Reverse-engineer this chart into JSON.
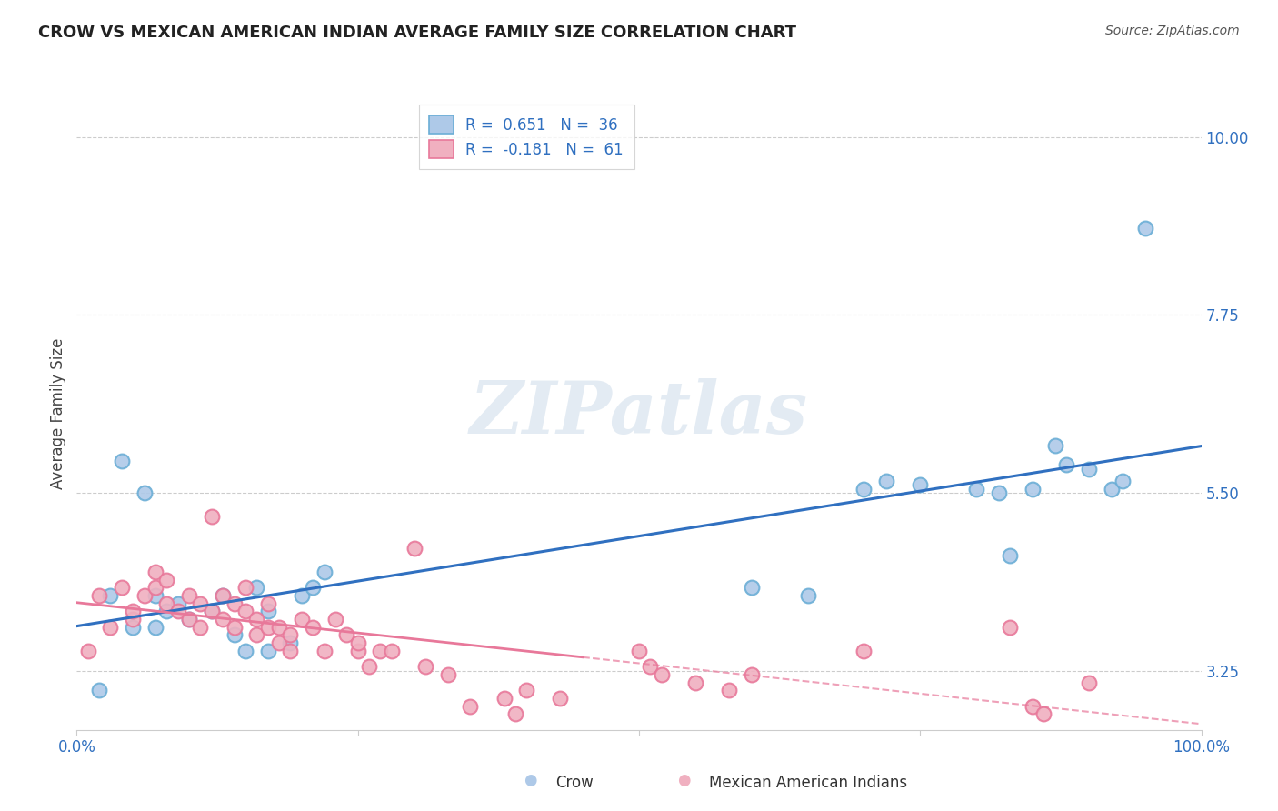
{
  "title": "CROW VS MEXICAN AMERICAN INDIAN AVERAGE FAMILY SIZE CORRELATION CHART",
  "source": "Source: ZipAtlas.com",
  "ylabel": "Average Family Size",
  "xlim": [
    0.0,
    1.0
  ],
  "ylim": [
    2.5,
    10.5
  ],
  "yticks": [
    3.25,
    5.5,
    7.75,
    10.0
  ],
  "ytick_labels": [
    "3.25",
    "5.50",
    "7.75",
    "10.00"
  ],
  "xtick_labels_left": "0.0%",
  "xtick_labels_right": "100.0%",
  "background_color": "#ffffff",
  "grid_color": "#cccccc",
  "crow_color": "#6baed6",
  "crow_face": "#aec9e8",
  "mexican_color": "#e8789a",
  "mexican_face": "#f0b0c0",
  "crow_R": 0.651,
  "crow_N": 36,
  "mexican_R": -0.181,
  "mexican_N": 61,
  "crow_line_color": "#3070c0",
  "mexican_line_color": "#e8789a",
  "watermark": "ZIPatlas",
  "crow_points_x": [
    0.02,
    0.03,
    0.04,
    0.05,
    0.06,
    0.07,
    0.07,
    0.08,
    0.09,
    0.1,
    0.12,
    0.13,
    0.14,
    0.15,
    0.16,
    0.17,
    0.17,
    0.19,
    0.2,
    0.21,
    0.22,
    0.6,
    0.65,
    0.7,
    0.72,
    0.75,
    0.8,
    0.82,
    0.83,
    0.85,
    0.87,
    0.88,
    0.9,
    0.92,
    0.93,
    0.95
  ],
  "crow_points_y": [
    3.0,
    4.2,
    5.9,
    3.8,
    5.5,
    4.2,
    3.8,
    4.0,
    4.1,
    3.9,
    4.0,
    4.2,
    3.7,
    3.5,
    4.3,
    4.0,
    3.5,
    3.6,
    4.2,
    4.3,
    4.5,
    4.3,
    4.2,
    5.55,
    5.65,
    5.6,
    5.55,
    5.5,
    4.7,
    5.55,
    6.1,
    5.85,
    5.8,
    5.55,
    5.65,
    8.85
  ],
  "mexican_points_x": [
    0.01,
    0.02,
    0.03,
    0.04,
    0.05,
    0.05,
    0.06,
    0.07,
    0.07,
    0.08,
    0.08,
    0.09,
    0.1,
    0.1,
    0.11,
    0.11,
    0.12,
    0.12,
    0.13,
    0.13,
    0.14,
    0.14,
    0.15,
    0.15,
    0.16,
    0.16,
    0.17,
    0.17,
    0.18,
    0.18,
    0.19,
    0.19,
    0.2,
    0.21,
    0.22,
    0.23,
    0.24,
    0.25,
    0.25,
    0.26,
    0.27,
    0.28,
    0.3,
    0.31,
    0.33,
    0.35,
    0.38,
    0.39,
    0.4,
    0.43,
    0.5,
    0.51,
    0.52,
    0.55,
    0.58,
    0.6,
    0.7,
    0.83,
    0.85,
    0.86,
    0.9
  ],
  "mexican_points_y": [
    3.5,
    4.2,
    3.8,
    4.3,
    3.9,
    4.0,
    4.2,
    4.5,
    4.3,
    4.1,
    4.4,
    4.0,
    4.2,
    3.9,
    4.1,
    3.8,
    4.0,
    5.2,
    4.2,
    3.9,
    4.1,
    3.8,
    4.0,
    4.3,
    3.7,
    3.9,
    4.1,
    3.8,
    3.8,
    3.6,
    3.5,
    3.7,
    3.9,
    3.8,
    3.5,
    3.9,
    3.7,
    3.5,
    3.6,
    3.3,
    3.5,
    3.5,
    4.8,
    3.3,
    3.2,
    2.8,
    2.9,
    2.7,
    3.0,
    2.9,
    3.5,
    3.3,
    3.2,
    3.1,
    3.0,
    3.2,
    3.5,
    3.8,
    2.8,
    2.7,
    3.1
  ]
}
